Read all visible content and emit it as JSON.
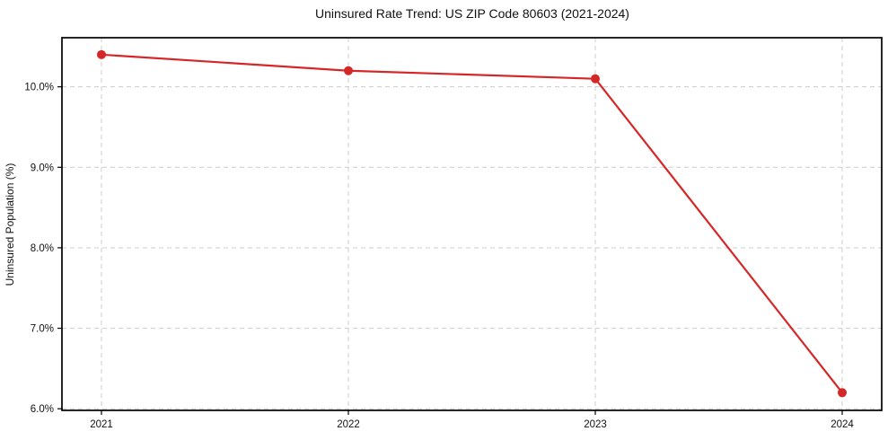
{
  "figure": {
    "background": "#ffffff"
  },
  "chart_data": {
    "type": "line",
    "title": "Uninsured Rate Trend: US ZIP Code 80603 (2021-2024)",
    "xlabel": "",
    "ylabel": "Uninsured Population (%)",
    "categories": [
      "2021",
      "2022",
      "2023",
      "2024"
    ],
    "values": [
      10.4,
      10.2,
      10.1,
      6.2
    ],
    "ylim": [
      5.98,
      10.61
    ],
    "yticks": [
      6.0,
      7.0,
      8.0,
      9.0,
      10.0
    ],
    "ytick_labels": [
      "6.0%",
      "7.0%",
      "8.0%",
      "9.0%",
      "10.0%"
    ],
    "grid": {
      "visible": true,
      "style": "dashed",
      "color": "#cccccc"
    },
    "legend": "none",
    "line_color": "#d62728",
    "marker": "circle",
    "axis_color": "#000000",
    "plot_background": "#ffffff"
  }
}
